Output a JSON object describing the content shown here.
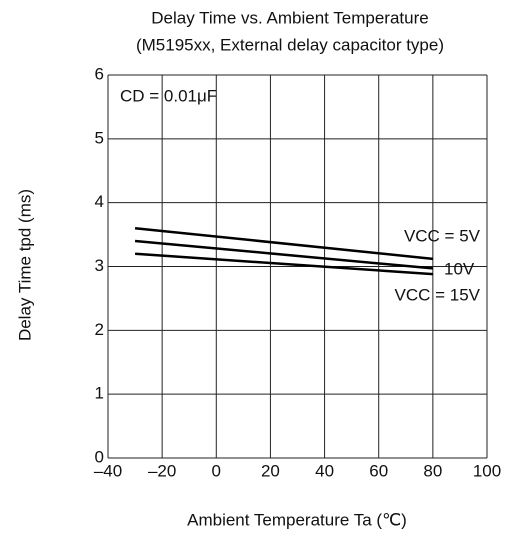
{
  "chart_data": {
    "type": "line",
    "title": "Delay Time vs. Ambient Temperature",
    "subtitle": "(M5195xx, External delay capacitor type)",
    "x_label": "Ambient Temperature   Ta   (℃)",
    "y_label": "Delay Time   tpd   (ms)",
    "annotation": "CD = 0.01μF",
    "x": [
      -30,
      80
    ],
    "series": [
      {
        "name": "VCC = 5V",
        "color": "#000000",
        "values": [
          3.6,
          3.12
        ]
      },
      {
        "name": "10V",
        "color": "#000000",
        "values": [
          3.4,
          2.97
        ]
      },
      {
        "name": "VCC = 15V",
        "color": "#000000",
        "values": [
          3.2,
          2.88
        ]
      }
    ],
    "xlim": [
      -40,
      100
    ],
    "xticks": [
      {
        "value": -40,
        "label": "–40"
      },
      {
        "value": -20,
        "label": "–20"
      },
      0,
      20,
      40,
      60,
      80,
      100
    ],
    "ylim": [
      0,
      6
    ],
    "yticks": [
      0,
      1,
      2,
      3,
      4,
      5,
      6
    ],
    "grid": true
  }
}
